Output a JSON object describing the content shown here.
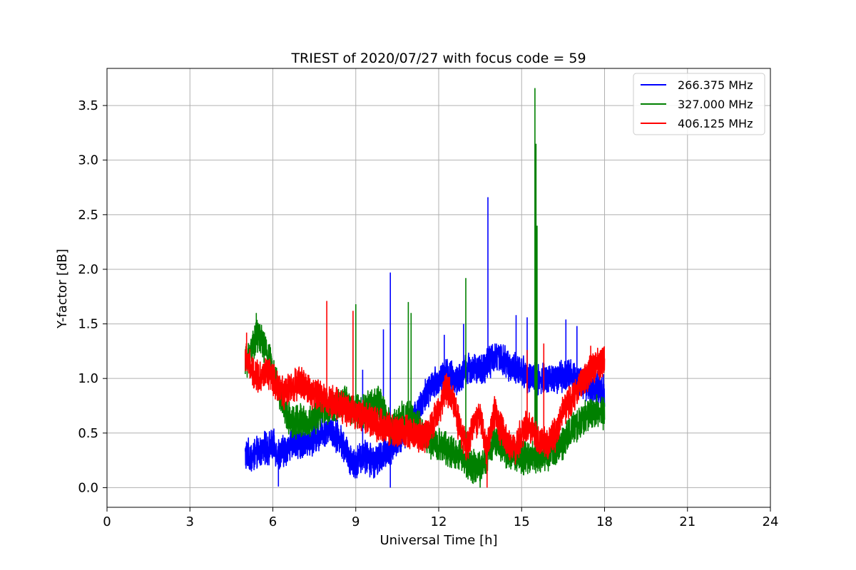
{
  "chart_data": {
    "type": "line",
    "title": "TRIEST of 2020/07/27 with focus code = 59",
    "xlabel": "Universal Time [h]",
    "ylabel": "Y-factor [dB]",
    "xlim": [
      0,
      24
    ],
    "ylim": [
      -0.18,
      3.84
    ],
    "xticks": [
      0,
      3,
      6,
      9,
      12,
      15,
      18,
      21,
      24
    ],
    "xtick_labels": [
      "0",
      "3",
      "6",
      "9",
      "12",
      "15",
      "18",
      "21",
      "24"
    ],
    "yticks": [
      0.0,
      0.5,
      1.0,
      1.5,
      2.0,
      2.5,
      3.0,
      3.5
    ],
    "ytick_labels": [
      "0.0",
      "0.5",
      "1.0",
      "1.5",
      "2.0",
      "2.5",
      "3.0",
      "3.5"
    ],
    "grid": true,
    "legend_position": "top-right",
    "series": [
      {
        "name": "266.375 MHz",
        "color": "#0000ff",
        "points": [
          [
            5.0,
            0.3
          ],
          [
            5.25,
            0.28
          ],
          [
            5.5,
            0.32
          ],
          [
            5.75,
            0.36
          ],
          [
            6.0,
            0.38
          ],
          [
            6.25,
            0.3
          ],
          [
            6.5,
            0.36
          ],
          [
            6.75,
            0.42
          ],
          [
            7.0,
            0.4
          ],
          [
            7.25,
            0.44
          ],
          [
            7.5,
            0.46
          ],
          [
            7.75,
            0.5
          ],
          [
            8.0,
            0.56
          ],
          [
            8.25,
            0.5
          ],
          [
            8.5,
            0.42
          ],
          [
            8.75,
            0.28
          ],
          [
            9.0,
            0.22
          ],
          [
            9.25,
            0.3
          ],
          [
            9.5,
            0.26
          ],
          [
            9.75,
            0.24
          ],
          [
            10.0,
            0.3
          ],
          [
            10.25,
            0.36
          ],
          [
            10.5,
            0.44
          ],
          [
            10.75,
            0.5
          ],
          [
            11.0,
            0.6
          ],
          [
            11.25,
            0.7
          ],
          [
            11.5,
            0.84
          ],
          [
            11.75,
            0.92
          ],
          [
            12.0,
            0.98
          ],
          [
            12.25,
            1.06
          ],
          [
            12.5,
            1.0
          ],
          [
            12.75,
            0.98
          ],
          [
            13.0,
            1.08
          ],
          [
            13.25,
            1.1
          ],
          [
            13.5,
            1.06
          ],
          [
            13.75,
            1.14
          ],
          [
            14.0,
            1.2
          ],
          [
            14.25,
            1.18
          ],
          [
            14.5,
            1.12
          ],
          [
            14.75,
            1.1
          ],
          [
            15.0,
            1.06
          ],
          [
            15.25,
            1.02
          ],
          [
            15.5,
            1.0
          ],
          [
            15.75,
            0.98
          ],
          [
            16.0,
            1.0
          ],
          [
            16.25,
            1.0
          ],
          [
            16.5,
            1.02
          ],
          [
            16.75,
            1.04
          ],
          [
            17.0,
            1.02
          ],
          [
            17.25,
            0.96
          ],
          [
            17.5,
            0.92
          ],
          [
            17.75,
            0.9
          ],
          [
            18.0,
            0.88
          ]
        ],
        "spikes": [
          [
            10.25,
            1.97
          ],
          [
            9.25,
            1.08
          ],
          [
            10.0,
            1.45
          ],
          [
            12.2,
            1.4
          ],
          [
            12.9,
            1.5
          ],
          [
            13.78,
            2.66
          ],
          [
            14.8,
            1.58
          ],
          [
            15.2,
            1.56
          ],
          [
            16.6,
            1.54
          ],
          [
            17.0,
            1.48
          ],
          [
            10.25,
            0.0
          ],
          [
            6.2,
            0.01
          ]
        ]
      },
      {
        "name": "327.000 MHz",
        "color": "#008000",
        "points": [
          [
            5.0,
            1.12
          ],
          [
            5.25,
            1.3
          ],
          [
            5.5,
            1.4
          ],
          [
            5.75,
            1.26
          ],
          [
            6.0,
            1.08
          ],
          [
            6.25,
            0.84
          ],
          [
            6.5,
            0.66
          ],
          [
            6.75,
            0.6
          ],
          [
            7.0,
            0.62
          ],
          [
            7.25,
            0.58
          ],
          [
            7.5,
            0.64
          ],
          [
            7.75,
            0.7
          ],
          [
            8.0,
            0.72
          ],
          [
            8.25,
            0.74
          ],
          [
            8.5,
            0.78
          ],
          [
            8.75,
            0.76
          ],
          [
            9.0,
            0.72
          ],
          [
            9.25,
            0.7
          ],
          [
            9.5,
            0.74
          ],
          [
            9.75,
            0.78
          ],
          [
            10.0,
            0.72
          ],
          [
            10.25,
            0.56
          ],
          [
            10.5,
            0.6
          ],
          [
            10.75,
            0.66
          ],
          [
            11.0,
            0.64
          ],
          [
            11.25,
            0.56
          ],
          [
            11.5,
            0.48
          ],
          [
            11.75,
            0.4
          ],
          [
            12.0,
            0.4
          ],
          [
            12.25,
            0.36
          ],
          [
            12.5,
            0.32
          ],
          [
            12.75,
            0.3
          ],
          [
            13.0,
            0.24
          ],
          [
            13.25,
            0.2
          ],
          [
            13.5,
            0.18
          ],
          [
            13.75,
            0.26
          ],
          [
            14.0,
            0.44
          ],
          [
            14.25,
            0.4
          ],
          [
            14.5,
            0.32
          ],
          [
            14.75,
            0.3
          ],
          [
            15.0,
            0.28
          ],
          [
            15.25,
            0.26
          ],
          [
            15.5,
            0.28
          ],
          [
            15.75,
            0.3
          ],
          [
            16.0,
            0.3
          ],
          [
            16.25,
            0.34
          ],
          [
            16.5,
            0.42
          ],
          [
            16.75,
            0.52
          ],
          [
            17.0,
            0.58
          ],
          [
            17.25,
            0.64
          ],
          [
            17.5,
            0.68
          ],
          [
            17.75,
            0.7
          ],
          [
            18.0,
            0.68
          ]
        ],
        "spikes": [
          [
            5.4,
            1.6
          ],
          [
            9.0,
            1.68
          ],
          [
            10.9,
            1.7
          ],
          [
            11.0,
            1.6
          ],
          [
            12.98,
            1.92
          ],
          [
            15.48,
            3.66
          ],
          [
            15.52,
            3.15
          ],
          [
            15.56,
            2.4
          ],
          [
            13.5,
            0.0
          ]
        ]
      },
      {
        "name": "406.125 MHz",
        "color": "#ff0000",
        "points": [
          [
            5.0,
            1.2
          ],
          [
            5.25,
            1.06
          ],
          [
            5.5,
            1.02
          ],
          [
            5.75,
            1.04
          ],
          [
            6.0,
            1.0
          ],
          [
            6.25,
            0.9
          ],
          [
            6.5,
            0.86
          ],
          [
            6.75,
            0.94
          ],
          [
            7.0,
            0.96
          ],
          [
            7.25,
            0.9
          ],
          [
            7.5,
            0.86
          ],
          [
            7.75,
            0.84
          ],
          [
            8.0,
            0.8
          ],
          [
            8.25,
            0.78
          ],
          [
            8.5,
            0.74
          ],
          [
            8.75,
            0.72
          ],
          [
            9.0,
            0.68
          ],
          [
            9.25,
            0.66
          ],
          [
            9.5,
            0.62
          ],
          [
            9.75,
            0.58
          ],
          [
            10.0,
            0.56
          ],
          [
            10.25,
            0.52
          ],
          [
            10.5,
            0.5
          ],
          [
            10.75,
            0.52
          ],
          [
            11.0,
            0.5
          ],
          [
            11.25,
            0.48
          ],
          [
            11.5,
            0.46
          ],
          [
            11.75,
            0.58
          ],
          [
            12.0,
            0.7
          ],
          [
            12.25,
            0.92
          ],
          [
            12.5,
            0.82
          ],
          [
            12.75,
            0.56
          ],
          [
            13.0,
            0.36
          ],
          [
            13.25,
            0.56
          ],
          [
            13.5,
            0.64
          ],
          [
            13.75,
            0.34
          ],
          [
            14.0,
            0.68
          ],
          [
            14.25,
            0.54
          ],
          [
            14.5,
            0.4
          ],
          [
            14.75,
            0.36
          ],
          [
            15.0,
            0.48
          ],
          [
            15.25,
            0.6
          ],
          [
            15.5,
            0.48
          ],
          [
            15.75,
            0.4
          ],
          [
            16.0,
            0.42
          ],
          [
            16.25,
            0.5
          ],
          [
            16.5,
            0.7
          ],
          [
            16.75,
            0.8
          ],
          [
            17.0,
            0.88
          ],
          [
            17.25,
            0.98
          ],
          [
            17.5,
            1.08
          ],
          [
            17.75,
            1.14
          ],
          [
            18.0,
            1.16
          ]
        ],
        "spikes": [
          [
            5.05,
            1.42
          ],
          [
            7.95,
            1.71
          ],
          [
            8.9,
            1.62
          ],
          [
            13.75,
            0.0
          ],
          [
            15.2,
            1.26
          ],
          [
            15.8,
            1.32
          ],
          [
            17.5,
            1.3
          ]
        ]
      }
    ]
  }
}
